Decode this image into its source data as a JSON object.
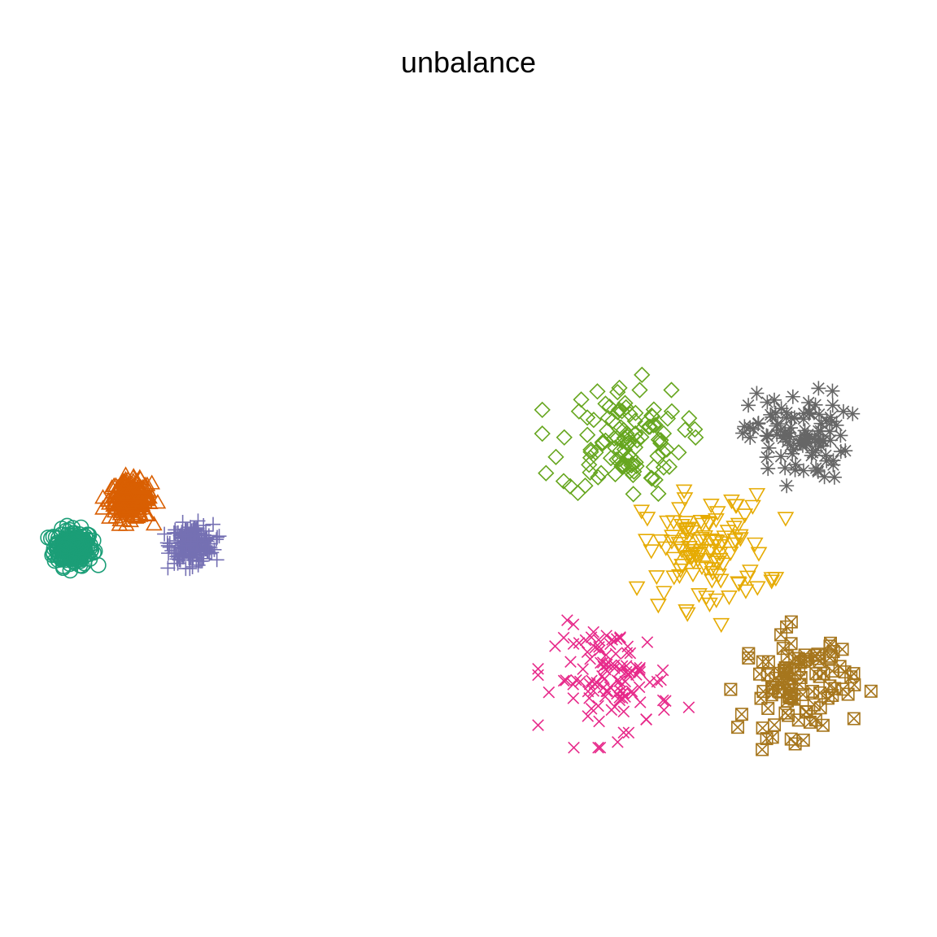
{
  "chart_data": {
    "type": "scatter",
    "title": "unbalance",
    "xlabel": "",
    "ylabel": "",
    "axes_visible": false,
    "grid": false,
    "legend": "none",
    "xlim": [
      0,
      1
    ],
    "ylim": [
      0,
      1
    ],
    "clusters": [
      {
        "marker": "circle",
        "color": "#1B9E77",
        "center": [
          0.05,
          0.42
        ],
        "spread": 0.011,
        "count": 220
      },
      {
        "marker": "triangle-up",
        "color": "#D95F02",
        "center": [
          0.115,
          0.48
        ],
        "spread": 0.012,
        "count": 220
      },
      {
        "marker": "plus",
        "color": "#7570B3",
        "center": [
          0.185,
          0.425
        ],
        "spread": 0.012,
        "count": 220
      },
      {
        "marker": "diamond",
        "color": "#66A61E",
        "center": [
          0.675,
          0.555
        ],
        "spread": 0.035,
        "count": 110
      },
      {
        "marker": "asterisk",
        "color": "#666666",
        "center": [
          0.875,
          0.56
        ],
        "spread": 0.028,
        "count": 100
      },
      {
        "marker": "triangle-down",
        "color": "#E6AB02",
        "center": [
          0.77,
          0.415
        ],
        "spread": 0.035,
        "count": 110
      },
      {
        "marker": "x",
        "color": "#E7298A",
        "center": [
          0.665,
          0.255
        ],
        "spread": 0.033,
        "count": 110
      },
      {
        "marker": "square-x",
        "color": "#A6761D",
        "center": [
          0.875,
          0.25
        ],
        "spread": 0.032,
        "count": 100
      }
    ]
  }
}
